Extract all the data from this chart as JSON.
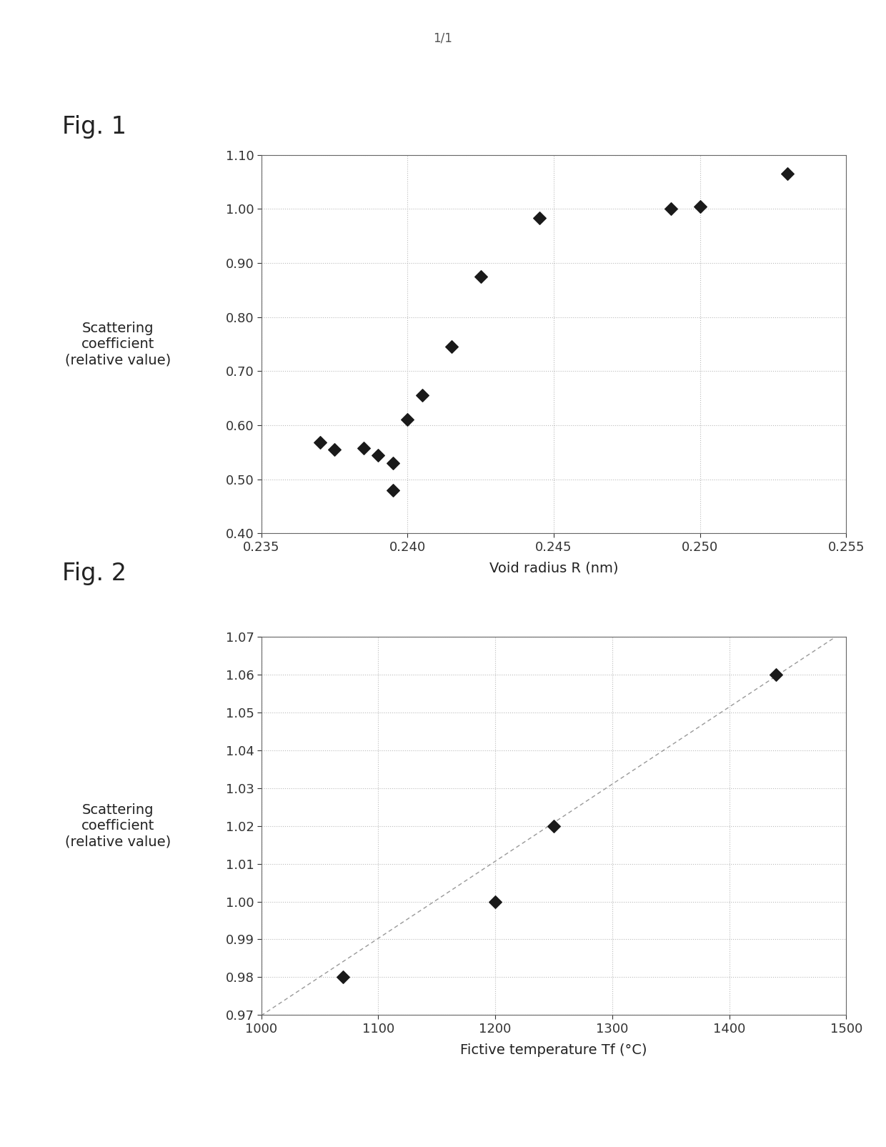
{
  "fig1": {
    "title": "Fig. 1",
    "xlabel": "Void radius R (nm)",
    "ylabel": "Scattering\ncoefficient\n(relative value)",
    "xlim": [
      0.235,
      0.255
    ],
    "ylim": [
      0.4,
      1.1
    ],
    "xticks": [
      0.235,
      0.24,
      0.245,
      0.25,
      0.255
    ],
    "yticks": [
      0.4,
      0.5,
      0.6,
      0.7,
      0.8,
      0.9,
      1.0,
      1.1
    ],
    "x": [
      0.237,
      0.2375,
      0.2385,
      0.239,
      0.2395,
      0.2395,
      0.24,
      0.2405,
      0.2415,
      0.2425,
      0.2445,
      0.249,
      0.25,
      0.253
    ],
    "y": [
      0.568,
      0.555,
      0.558,
      0.545,
      0.53,
      0.48,
      0.61,
      0.655,
      0.745,
      0.875,
      0.983,
      1.0,
      1.005,
      1.065
    ]
  },
  "fig2": {
    "title": "Fig. 2",
    "xlabel": "Fictive temperature Tf (°C)",
    "ylabel": "Scattering\ncoefficient\n(relative value)",
    "xlim": [
      1000,
      1500
    ],
    "ylim": [
      0.97,
      1.07
    ],
    "xticks": [
      1000,
      1100,
      1200,
      1300,
      1400,
      1500
    ],
    "yticks": [
      0.97,
      0.98,
      0.99,
      1.0,
      1.01,
      1.02,
      1.03,
      1.04,
      1.05,
      1.06,
      1.07
    ],
    "scatter_x": [
      1070,
      1200,
      1250,
      1440
    ],
    "scatter_y": [
      0.98,
      1.0,
      1.02,
      1.06
    ],
    "line_x": [
      970,
      1510
    ],
    "line_y": [
      0.9638,
      1.0738
    ]
  },
  "page_label": "1/1",
  "background_color": "#ffffff",
  "marker_color": "#1a1a1a",
  "grid_color": "#bbbbbb",
  "axis_color": "#666666",
  "tick_label_color": "#333333",
  "fig_label_fontsize": 24,
  "axis_label_fontsize": 14,
  "tick_fontsize": 13,
  "page_label_fontsize": 12
}
